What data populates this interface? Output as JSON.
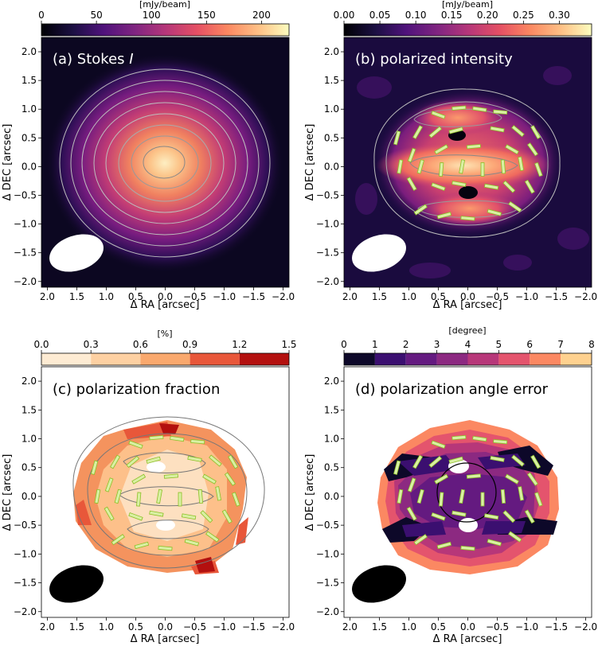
{
  "chart_data": [
    {
      "type": "heatmap",
      "panel_label": "(a) Stokes ",
      "panel_label_italic": "I",
      "colorbar_label": "[mJy/beam]",
      "colorbar_ticks": [
        0,
        50,
        100,
        150,
        200
      ],
      "colorbar_tick_labels": [
        "0",
        "50",
        "100",
        "150",
        "200"
      ],
      "colorbar_range": [
        0,
        225
      ],
      "colormap": "magma",
      "xlabel": "Δ RA [arcsec]",
      "ylabel": "Δ DEC [arcsec]",
      "xlim": [
        2.1,
        -2.1
      ],
      "ylim": [
        -2.1,
        2.25
      ],
      "xticks": [
        "2.0",
        "1.5",
        "1.0",
        "0.5",
        "0.0",
        "−0.5",
        "−1.0",
        "−1.5",
        "−2.0"
      ],
      "yticks": [
        "−2.0",
        "−1.5",
        "−1.0",
        "−0.5",
        "0.0",
        "0.5",
        "1.0",
        "1.5",
        "2.0"
      ],
      "peak": {
        "x": 0.0,
        "y": 0.02,
        "value_mjy_per_beam": 225
      },
      "beam": {
        "x": 1.5,
        "y": -1.52,
        "major": 0.9,
        "minor": 0.58,
        "pa_deg": 18,
        "color": "#ffffff"
      }
    },
    {
      "type": "heatmap",
      "panel_label": "(b) polarized intensity",
      "colorbar_label": "[mJy/beam]",
      "colorbar_ticks": [
        0.0,
        0.05,
        0.1,
        0.15,
        0.2,
        0.25,
        0.3
      ],
      "colorbar_tick_labels": [
        "0.00",
        "0.05",
        "0.10",
        "0.15",
        "0.20",
        "0.25",
        "0.30"
      ],
      "colorbar_range": [
        0,
        0.345
      ],
      "colormap": "magma",
      "xlabel": "Δ RA [arcsec]",
      "ylabel": "Δ DEC [arcsec]",
      "xlim": [
        2.1,
        -2.1
      ],
      "ylim": [
        -2.1,
        2.25
      ],
      "xticks": [
        "2.0",
        "1.5",
        "1.0",
        "0.5",
        "0.0",
        "−0.5",
        "−1.0",
        "−1.5",
        "−2.0"
      ],
      "yticks": [
        "−2.0",
        "−1.5",
        "−1.0",
        "−0.5",
        "0.0",
        "0.5",
        "1.0",
        "1.5",
        "2.0"
      ],
      "features": "bright horizontal band at y≈0.0; polarization holes at (0.15, 0.45) and (0.15, -0.5)",
      "beam": {
        "x": 1.5,
        "y": -1.52,
        "major": 0.9,
        "minor": 0.58,
        "pa_deg": 18,
        "color": "#ffffff"
      }
    },
    {
      "type": "heatmap",
      "panel_label": "(c) polarization fraction",
      "colorbar_label": "[%]",
      "colorbar_ticks": [
        0.0,
        0.3,
        0.6,
        0.9,
        1.2,
        1.5
      ],
      "colorbar_tick_labels": [
        "0.0",
        "0.3",
        "0.6",
        "0.9",
        "1.2",
        "1.5"
      ],
      "colorbar_range": [
        0,
        1.5
      ],
      "colormap": "OrRd (discrete, 5 levels)",
      "xlabel": "Δ RA [arcsec]",
      "ylabel": "Δ DEC [arcsec]",
      "xlim": [
        2.1,
        -2.1
      ],
      "ylim": [
        -2.1,
        2.25
      ],
      "xticks": [
        "2.0",
        "1.5",
        "1.0",
        "0.5",
        "0.0",
        "−0.5",
        "−1.0",
        "−1.5",
        "−2.0"
      ],
      "yticks": [
        "−2.0",
        "−1.5",
        "−1.0",
        "−0.5",
        "0.0",
        "0.5",
        "1.0",
        "1.5",
        "2.0"
      ],
      "beam": {
        "x": 1.5,
        "y": -1.52,
        "major": 0.9,
        "minor": 0.58,
        "pa_deg": 18,
        "color": "#000000"
      }
    },
    {
      "type": "heatmap",
      "panel_label": "(d) polarization angle error",
      "colorbar_label": "[degree]",
      "colorbar_ticks": [
        0,
        1,
        2,
        3,
        4,
        5,
        6,
        7,
        8
      ],
      "colorbar_tick_labels": [
        "0",
        "1",
        "2",
        "3",
        "4",
        "5",
        "6",
        "7",
        "8"
      ],
      "colorbar_range": [
        0,
        8
      ],
      "colormap": "magma (discrete, 8 levels)",
      "xlabel": "Δ RA [arcsec]",
      "ylabel": "Δ DEC [arcsec]",
      "xlim": [
        2.1,
        -2.1
      ],
      "ylim": [
        -2.1,
        2.25
      ],
      "xticks": [
        "2.0",
        "1.5",
        "1.0",
        "0.5",
        "0.0",
        "−0.5",
        "−1.0",
        "−1.5",
        "−2.0"
      ],
      "yticks": [
        "−2.0",
        "−1.5",
        "−1.0",
        "−0.5",
        "0.0",
        "0.5",
        "1.0",
        "1.5",
        "2.0"
      ],
      "circle": {
        "x": 0.0,
        "y": 0.0,
        "radius": 0.5
      },
      "beam": {
        "x": 1.5,
        "y": -1.52,
        "major": 0.9,
        "minor": 0.58,
        "pa_deg": 18,
        "color": "#000000"
      }
    }
  ],
  "colors": {
    "contour_light": "#bdbdbd",
    "contour_dark": "#777777",
    "vector_fill": "#d9f0a3",
    "vector_edge": "#8cbf26"
  }
}
